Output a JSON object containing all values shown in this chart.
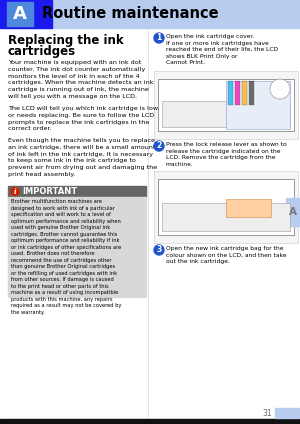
{
  "page_number": "31",
  "chapter_letter": "A",
  "chapter_title": "Routine maintenance",
  "section_title_line1": "Replacing the ink",
  "section_title_line2": "cartridges",
  "body_text_1": "Your machine is equipped with an ink dot\ncounter. The ink dot counter automatically\nmonitors the level of ink in each of the 4\ncartridges. When the machine detects an ink\ncartridge is running out of ink, the machine\nwill tell you with a message on the LCD.",
  "body_text_2": "The LCD will tell you which ink cartridge is low\nor needs replacing. Be sure to follow the LCD\nprompts to replace the ink cartridges in the\ncorrect order.",
  "body_text_3": "Even though the machine tells you to replace\nan ink cartridge, there will be a small amount\nof ink left in the ink cartridge. It is necessary\nto keep some ink in the ink cartridge to\nprevent air from drying out and damaging the\nprint head assembly.",
  "important_title": "IMPORTANT",
  "important_text": "Brother multifunction machines are\ndesigned to work with ink of a particular\nspecification and will work to a level of\noptimum performance and reliability when\nused with genuine Brother Original ink\ncartridges. Brother cannot guarantee this\noptimum performance and reliability if ink\nor ink cartridges of other specifications are\nused. Brother does not therefore\nrecommend the use of cartridges other\nthan genuine Brother Original cartridges\nor the refilling of used cartridges with ink\nfrom other sources. If damage is caused\nto the print head or other parts of this\nmachine as a result of using incompatible\nproducts with this machine, any repairs\nrequired as a result may not be covered by\nthe warranty.",
  "step1_num": "1",
  "step1_text": "Open the ink cartridge cover.\nIf one or more ink cartridges have\nreached the end of their life, the LCD\nshows BLK Print Only or\nCannot Print.",
  "step2_num": "2",
  "step2_text": "Press the lock release lever as shown to\nrelease the cartridge indicated on the\nLCD. Remove the cartridge from the\nmachine.",
  "step3_num": "3",
  "step3_text": "Open the new ink cartridge bag for the\ncolour shown on the LCD, and then take\nout the ink cartridge.",
  "bg_color": "#ffffff",
  "header_dark_blue": "#1a1aee",
  "header_light_blue": "#b8ccf0",
  "letter_box_blue": "#4d88dd",
  "important_header_color": "#666666",
  "important_bg_color": "#d8d8d8",
  "important_icon_bg": "#cc2200",
  "step_circle_color": "#2255cc",
  "side_tab_color": "#b8ccf0",
  "footer_bar_color": "#111111",
  "page_num_bar_color": "#b8ccf0",
  "divider_color": "#cccccc",
  "col_split": 148
}
